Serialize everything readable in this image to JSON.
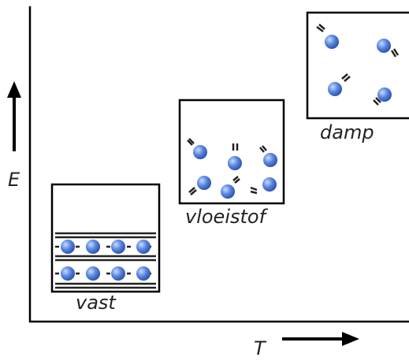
{
  "axes": {
    "y_label": "E",
    "x_label": "T"
  },
  "states": [
    {
      "label": "vast"
    },
    {
      "label": "vloeistof"
    },
    {
      "label": "damp"
    }
  ]
}
